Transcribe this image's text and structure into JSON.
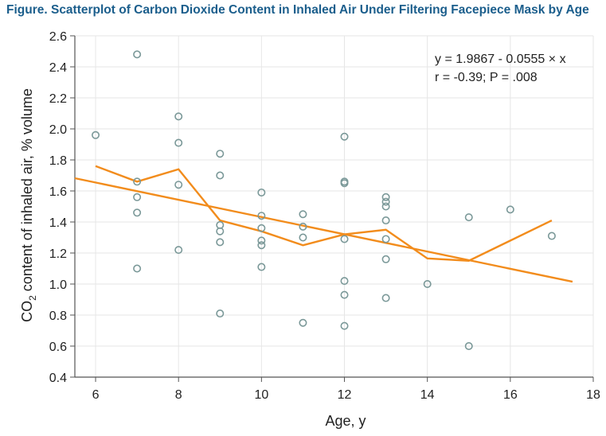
{
  "figure_title": "Figure.  Scatterplot of Carbon Dioxide Content in Inhaled Air Under Filtering Facepiece Mask by Age",
  "colors": {
    "title": "#1b5e8c",
    "grid": "#e6e6e6",
    "points": "#7a9898",
    "lines": "#f28c1c",
    "axis": "#555555"
  },
  "chart_data": {
    "type": "scatter",
    "xlabel": "Age, y",
    "ylabel_prefix": "CO",
    "ylabel_sub": "2",
    "ylabel_suffix": " content of inhaled air, % volume",
    "xlim": [
      5.5,
      18
    ],
    "ylim": [
      0.4,
      2.6
    ],
    "xticks": [
      6,
      8,
      10,
      12,
      14,
      16,
      18
    ],
    "yticks": [
      "0.4",
      "0.6",
      "0.8",
      "1.0",
      "1.2",
      "1.4",
      "1.6",
      "1.8",
      "2.0",
      "2.2",
      "2.4",
      "2.6"
    ],
    "grid": true,
    "annotations": [
      "y = 1.9867 - 0.0555 × x",
      "r = -0.39; P = .008"
    ],
    "points": [
      [
        6,
        1.96
      ],
      [
        7,
        2.48
      ],
      [
        7,
        1.66
      ],
      [
        7,
        1.56
      ],
      [
        7,
        1.46
      ],
      [
        7,
        1.1
      ],
      [
        8,
        2.08
      ],
      [
        8,
        1.91
      ],
      [
        8,
        1.64
      ],
      [
        8,
        1.22
      ],
      [
        9,
        1.84
      ],
      [
        9,
        1.7
      ],
      [
        9,
        1.38
      ],
      [
        9,
        1.34
      ],
      [
        9,
        1.27
      ],
      [
        9,
        0.81
      ],
      [
        10,
        1.59
      ],
      [
        10,
        1.44
      ],
      [
        10,
        1.36
      ],
      [
        10,
        1.28
      ],
      [
        10,
        1.25
      ],
      [
        10,
        1.11
      ],
      [
        11,
        1.45
      ],
      [
        11,
        1.37
      ],
      [
        11,
        1.3
      ],
      [
        11,
        0.75
      ],
      [
        12,
        1.95
      ],
      [
        12,
        1.66
      ],
      [
        12,
        1.65
      ],
      [
        12,
        1.29
      ],
      [
        12,
        1.02
      ],
      [
        12,
        0.93
      ],
      [
        12,
        0.73
      ],
      [
        13,
        1.56
      ],
      [
        13,
        1.53
      ],
      [
        13,
        1.5
      ],
      [
        13,
        1.41
      ],
      [
        13,
        1.29
      ],
      [
        13,
        1.16
      ],
      [
        13,
        0.91
      ],
      [
        14,
        1.0
      ],
      [
        15,
        1.43
      ],
      [
        15,
        0.6
      ],
      [
        16,
        1.48
      ],
      [
        17,
        1.31
      ]
    ],
    "regression_line": [
      [
        5.5,
        1.682
      ],
      [
        17.5,
        1.015
      ]
    ],
    "mean_line": [
      [
        6,
        1.76
      ],
      [
        7,
        1.66
      ],
      [
        8,
        1.74
      ],
      [
        9,
        1.41
      ],
      [
        10,
        1.34
      ],
      [
        11,
        1.25
      ],
      [
        12,
        1.32
      ],
      [
        13,
        1.35
      ],
      [
        14,
        1.165
      ],
      [
        15,
        1.15
      ],
      [
        17,
        1.41
      ]
    ]
  }
}
